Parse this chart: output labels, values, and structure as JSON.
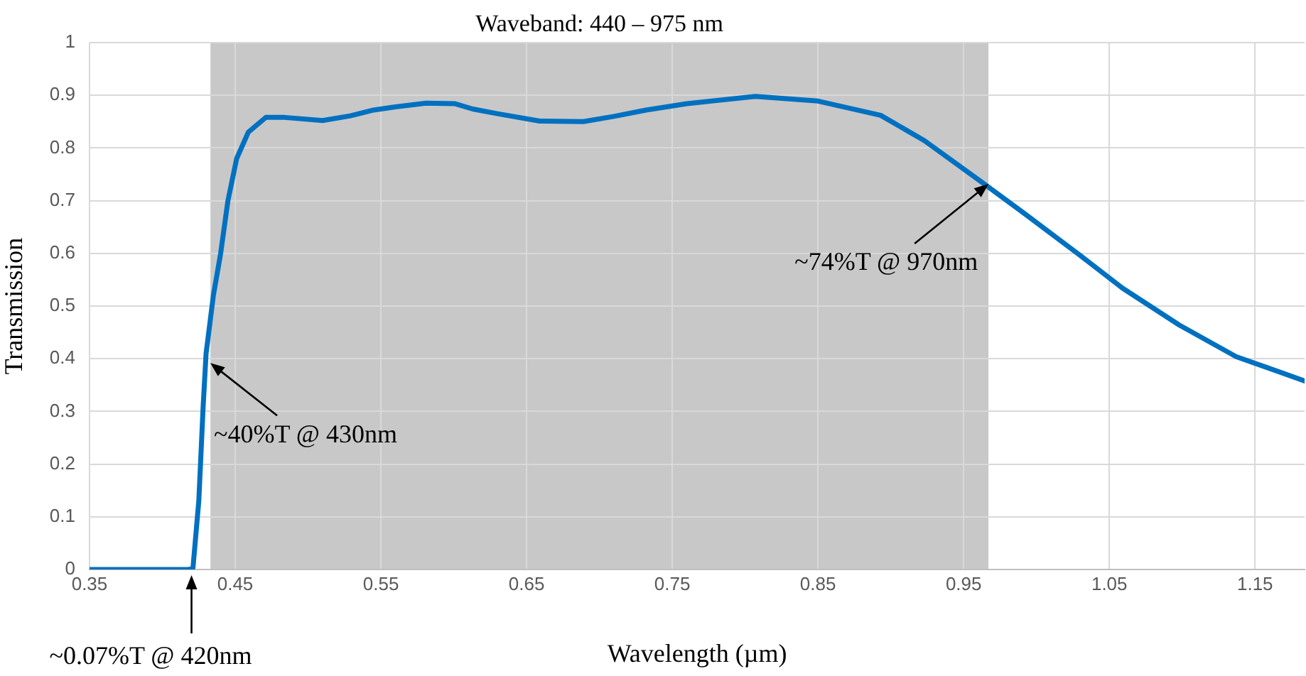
{
  "chart_data": {
    "type": "line",
    "xlabel": "Wavelength (µm)",
    "ylabel": "Transmission",
    "x": [
      0.35,
      0.413,
      0.418,
      0.421,
      0.425,
      0.428,
      0.43,
      0.435,
      0.44,
      0.445,
      0.451,
      0.459,
      0.471,
      0.484,
      0.51,
      0.529,
      0.545,
      0.56,
      0.581,
      0.601,
      0.613,
      0.63,
      0.659,
      0.689,
      0.71,
      0.732,
      0.76,
      0.807,
      0.85,
      0.893,
      0.923,
      0.962,
      0.991,
      1.03,
      1.059,
      1.098,
      1.137,
      1.184
    ],
    "series": [
      {
        "color": "#0070c0",
        "values": [
          0,
          0,
          0,
          0.003,
          0.13,
          0.31,
          0.41,
          0.52,
          0.6,
          0.7,
          0.78,
          0.83,
          0.858,
          0.858,
          0.852,
          0.861,
          0.872,
          0.878,
          0.885,
          0.884,
          0.874,
          0.865,
          0.851,
          0.85,
          0.86,
          0.872,
          0.884,
          0.898,
          0.889,
          0.862,
          0.814,
          0.736,
          0.677,
          0.596,
          0.534,
          0.464,
          0.404,
          0.358
        ]
      }
    ],
    "xlim": [
      0.35,
      1.184
    ],
    "xticks": [
      {
        "value": 0.35,
        "label": "0.35"
      },
      {
        "value": 0.45,
        "label": "0.45"
      },
      {
        "value": 0.55,
        "label": "0.55"
      },
      {
        "value": 0.65,
        "label": "0.65"
      },
      {
        "value": 0.75,
        "label": "0.75"
      },
      {
        "value": 0.85,
        "label": "0.85"
      },
      {
        "value": 0.95,
        "label": "0.95"
      },
      {
        "value": 1.05,
        "label": "1.05"
      },
      {
        "value": 1.15,
        "label": "1.15"
      }
    ],
    "ylim": [
      0,
      1
    ],
    "yticks": [
      0,
      0.1,
      0.2,
      0.3,
      0.4,
      0.5,
      0.6,
      0.7,
      0.8,
      0.9,
      1
    ],
    "bands": [
      {
        "axis": "x",
        "from": 0.433,
        "to": 0.967,
        "label": "Waveband: 440 – 975 nm",
        "color": "#c8c8c8"
      }
    ],
    "annotations": [
      {
        "text": "~40%T @ 430nm",
        "x": 0.43,
        "y": 0.4
      },
      {
        "text": "~74%T @ 970nm",
        "x": 0.97,
        "y": 0.74
      },
      {
        "text": "~0.07%T @ 420nm",
        "x": 0.42,
        "y": 0
      }
    ],
    "grid": true,
    "legend": false,
    "marker": "none",
    "line_style": "solid"
  }
}
